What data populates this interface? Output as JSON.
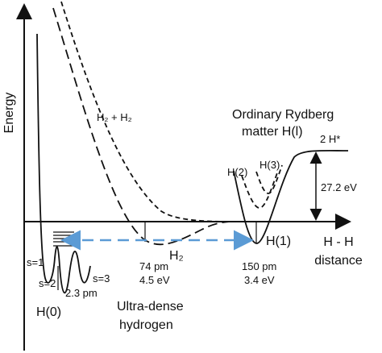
{
  "axes": {
    "y_label": "Energy",
    "x_label_1": "H - H",
    "x_label_2": "distance"
  },
  "curves": {
    "h2_h2": "H₂ + H₂",
    "h2": "H₂",
    "rydberg_title_1": "Ordinary Rydberg",
    "rydberg_title_2": "matter H(l)",
    "h_star": "2 H*",
    "h2_level": "H(2)",
    "h3_level": "H(3)",
    "h1_level": "H(1)",
    "h0_level": "H(0)"
  },
  "annotations": {
    "gap": "27.2 eV",
    "h2_distance": "74 pm",
    "h2_energy": "4.5 eV",
    "h1_distance": "150 pm",
    "h1_energy": "3.4 eV",
    "s1": "s=1",
    "s2": "s=2",
    "s3": "s=3",
    "h0_distance": "2.3 pm",
    "ultra_1": "Ultra-dense",
    "ultra_2": "hydrogen"
  }
}
